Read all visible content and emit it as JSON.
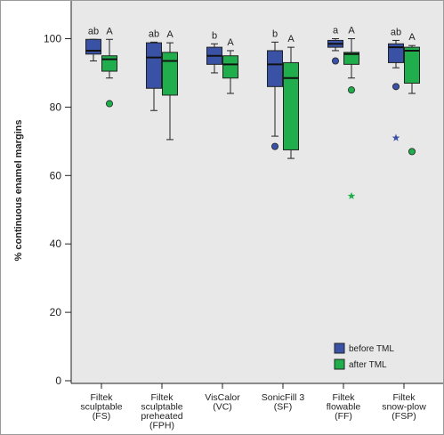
{
  "chart_data": {
    "type": "box",
    "ylabel": "% continuous enamel margins",
    "xlabel": "",
    "ylim": [
      0,
      100
    ],
    "yticks": [
      0,
      20,
      40,
      60,
      80,
      100
    ],
    "grid": false,
    "legend_position": "bottom-right",
    "categories": [
      [
        "Filtek",
        "sculptable",
        "(FS)"
      ],
      [
        "Filtek",
        "sculptable",
        "preheated",
        "(FPH)"
      ],
      [
        "VisCalor",
        "(VC)"
      ],
      [
        "SonicFill 3",
        "(SF)"
      ],
      [
        "Filtek",
        "flowable",
        "(FF)"
      ],
      [
        "Filtek",
        "snow-plow",
        "(FSP)"
      ]
    ],
    "series": [
      {
        "name": "before TML",
        "color": "#3a52a6",
        "significance": [
          "ab",
          "ab",
          "b",
          "b",
          "a",
          "ab"
        ],
        "boxes": [
          {
            "whislo": 93.5,
            "q1": 95.5,
            "med": 96.5,
            "q3": 99.8,
            "whishi": 99.8,
            "outliers": [],
            "extremes": []
          },
          {
            "whislo": 79,
            "q1": 85.5,
            "med": 94.5,
            "q3": 98.8,
            "whishi": 99,
            "outliers": [],
            "extremes": []
          },
          {
            "whislo": 90,
            "q1": 92.5,
            "med": 95,
            "q3": 97.5,
            "whishi": 98.5,
            "outliers": [],
            "extremes": []
          },
          {
            "whislo": 71.5,
            "q1": 86,
            "med": 92.5,
            "q3": 96.5,
            "whishi": 99,
            "outliers": [
              68.5
            ],
            "extremes": []
          },
          {
            "whislo": 96.5,
            "q1": 97.5,
            "med": 98.5,
            "q3": 99.5,
            "whishi": 100,
            "outliers": [
              93.5
            ],
            "extremes": []
          },
          {
            "whislo": 91.5,
            "q1": 93,
            "med": 97.5,
            "q3": 98.5,
            "whishi": 99.5,
            "outliers": [
              86
            ],
            "extremes": [
              71
            ]
          }
        ]
      },
      {
        "name": "after TML",
        "color": "#1fae4b",
        "significance": [
          "A",
          "A",
          "A",
          "A",
          "A",
          "A"
        ],
        "boxes": [
          {
            "whislo": 88.5,
            "q1": 90.5,
            "med": 94,
            "q3": 95,
            "whishi": 99.8,
            "outliers": [
              81
            ],
            "extremes": []
          },
          {
            "whislo": 70.5,
            "q1": 83.5,
            "med": 93.5,
            "q3": 96,
            "whishi": 98.8,
            "outliers": [],
            "extremes": []
          },
          {
            "whislo": 84,
            "q1": 88.5,
            "med": 92.5,
            "q3": 95,
            "whishi": 96.5,
            "outliers": [],
            "extremes": []
          },
          {
            "whislo": 65,
            "q1": 67.5,
            "med": 88.5,
            "q3": 93,
            "whishi": 97.5,
            "outliers": [],
            "extremes": []
          },
          {
            "whislo": 88.5,
            "q1": 92.5,
            "med": 95.5,
            "q3": 96,
            "whishi": 100,
            "outliers": [
              85
            ],
            "extremes": [
              54
            ]
          },
          {
            "whislo": 84,
            "q1": 87,
            "med": 96.5,
            "q3": 97.5,
            "whishi": 98,
            "outliers": [
              67
            ],
            "extremes": []
          }
        ]
      }
    ]
  }
}
